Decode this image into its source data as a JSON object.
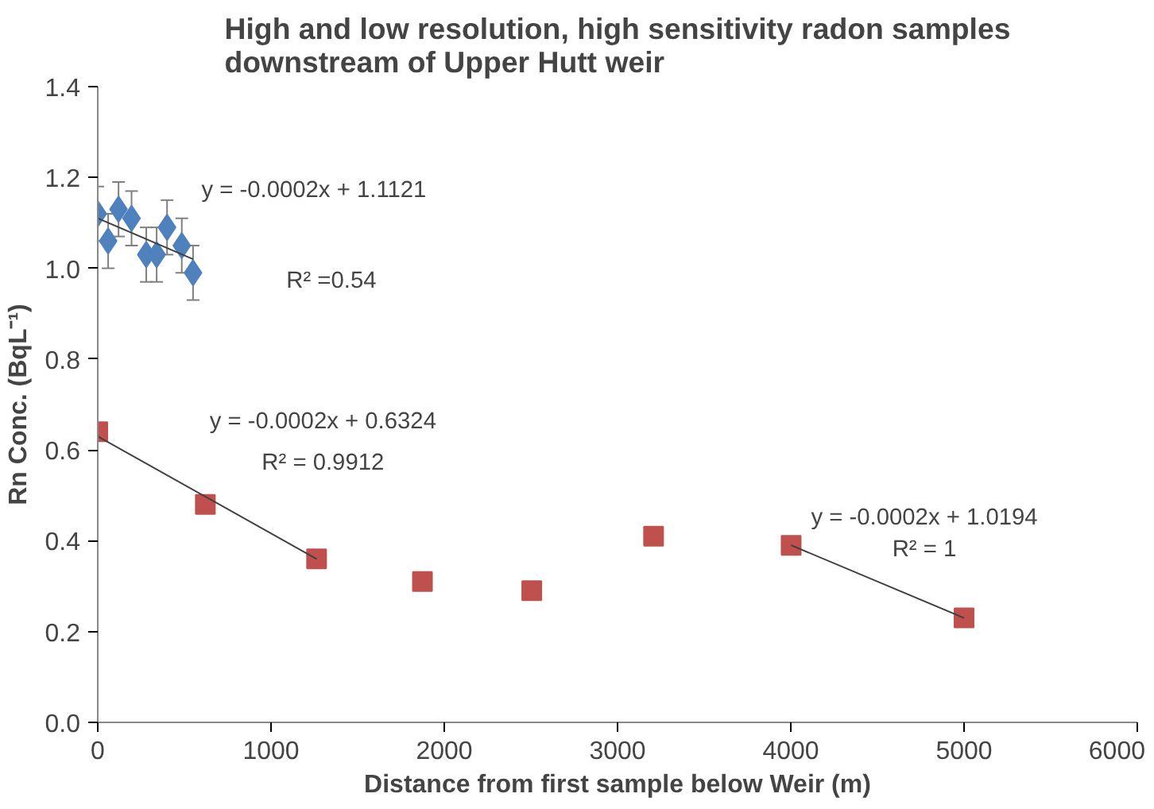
{
  "chart_data": {
    "type": "scatter",
    "title": "High and low resolution, high sensitivity radon samples\ndownstream of Upper Hutt weir",
    "xlabel": "Distance from first sample below Weir (m)",
    "ylabel": "Rn Conc. (BqL⁻¹)",
    "xlim": [
      0,
      6000
    ],
    "xticks": [
      0,
      1000,
      2000,
      3000,
      4000,
      5000,
      6000
    ],
    "ylim": [
      0,
      1.4
    ],
    "yticks": [
      {
        "value": 0,
        "label": "0.0"
      },
      {
        "value": 0.2,
        "label": "0.2"
      },
      {
        "value": 0.4,
        "label": "0.4"
      },
      {
        "value": 0.6,
        "label": "0.6"
      },
      {
        "value": 0.8,
        "label": "0.8"
      },
      {
        "value": 1.0,
        "label": "1.0"
      },
      {
        "value": 1.2,
        "label": "1.2"
      },
      {
        "value": 1.4,
        "label": "1.4"
      }
    ],
    "grid": false,
    "series": [
      {
        "color": "#4f81bd",
        "marker": "diamond",
        "x": [
          0,
          60,
          120,
          195,
          280,
          340,
          400,
          485,
          550
        ],
        "values": [
          1.12,
          1.06,
          1.13,
          1.11,
          1.03,
          1.03,
          1.09,
          1.05,
          0.99
        ],
        "errors": [
          0.06,
          0.06,
          0.06,
          0.06,
          0.06,
          0.06,
          0.06,
          0.06,
          0.06
        ]
      },
      {
        "color": "#c0504d",
        "marker": "square",
        "x": [
          0,
          621,
          1263,
          1874,
          2505,
          3208,
          4002,
          5000
        ],
        "values": [
          0.64,
          0.48,
          0.36,
          0.31,
          0.29,
          0.41,
          0.39,
          0.23
        ]
      },
      {
        "type": "line",
        "color": "#404040",
        "x": [
          0,
          550
        ],
        "values": [
          1.11,
          1.02
        ],
        "marker": "none",
        "line_style": "solid"
      },
      {
        "type": "line",
        "color": "#404040",
        "x": [
          0,
          1263
        ],
        "values": [
          0.63,
          0.36
        ],
        "marker": "none",
        "line_style": "solid"
      },
      {
        "type": "line",
        "color": "#404040",
        "x": [
          4002,
          5000
        ],
        "values": [
          0.39,
          0.23
        ],
        "marker": "none",
        "line_style": "solid"
      }
    ],
    "annotations": [
      "y = -0.0002x + 1.1121",
      "R² =0.54",
      "y = -0.0002x + 0.6324",
      "R² = 0.9912",
      "y = -0.0002x + 1.0194",
      "R² = 1"
    ]
  }
}
